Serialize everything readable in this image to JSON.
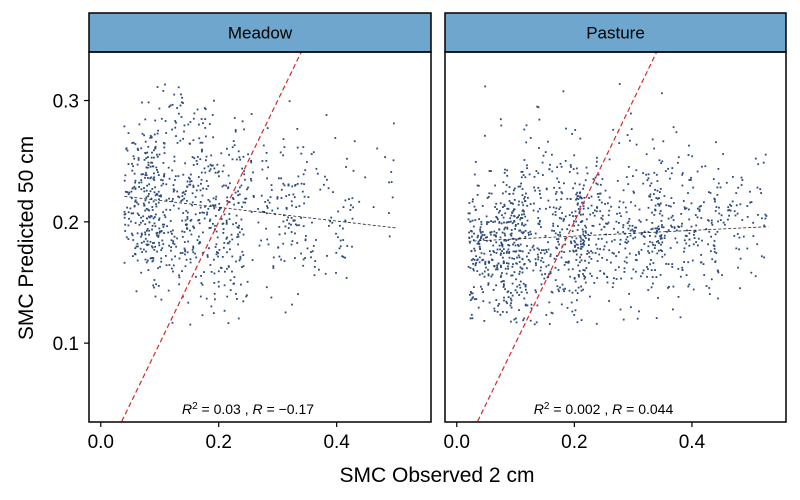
{
  "chart_data": {
    "type": "scatter",
    "xlabel": "SMC Observed 2 cm",
    "ylabel": "SMC Predicted 50 cm",
    "xlim": [
      -0.02,
      0.56
    ],
    "ylim": [
      0.035,
      0.34
    ],
    "x_ticks": [
      0.0,
      0.2,
      0.4
    ],
    "x_tick_labels": [
      "0.0",
      "0.2",
      "0.4"
    ],
    "y_ticks": [
      0.1,
      0.2,
      0.3
    ],
    "y_tick_labels": [
      "0.1",
      "0.2",
      "0.3"
    ],
    "grid": false,
    "colors": {
      "points": "#2c4a7a",
      "one_to_one_line": "#d62728",
      "fit_line": "#222222",
      "strip": "#6ea6cd"
    },
    "panels": [
      {
        "title": "Meadow",
        "stats_label": {
          "r2": "0.03",
          "r": "−0.17"
        },
        "fit_line": {
          "x": [
            0.04,
            0.5
          ],
          "y": [
            0.221,
            0.195
          ]
        },
        "one_to_one_line": {
          "x": [
            0.0,
            0.6
          ],
          "y": [
            0.0,
            0.6
          ]
        },
        "point_clusters": [
          {
            "x_range": [
              0.04,
              0.1
            ],
            "y_mean": 0.215,
            "y_sd": 0.03,
            "n": 180
          },
          {
            "x_range": [
              0.07,
              0.2
            ],
            "y_mean": 0.23,
            "y_sd": 0.045,
            "n": 260
          },
          {
            "x_range": [
              0.1,
              0.25
            ],
            "y_mean": 0.19,
            "y_sd": 0.035,
            "n": 200
          },
          {
            "x_range": [
              0.2,
              0.35
            ],
            "y_mean": 0.21,
            "y_sd": 0.035,
            "n": 170
          },
          {
            "x_range": [
              0.3,
              0.43
            ],
            "y_mean": 0.205,
            "y_sd": 0.03,
            "n": 80
          },
          {
            "x_range": [
              0.42,
              0.5
            ],
            "y_mean": 0.235,
            "y_sd": 0.025,
            "n": 15
          }
        ]
      },
      {
        "title": "Pasture",
        "stats_label": {
          "r2": "0.002",
          "r": "0.044"
        },
        "fit_line": {
          "x": [
            0.02,
            0.53
          ],
          "y": [
            0.184,
            0.196
          ]
        },
        "one_to_one_line": {
          "x": [
            0.0,
            0.6
          ],
          "y": [
            0.0,
            0.6
          ]
        },
        "point_clusters": [
          {
            "x_range": [
              0.02,
              0.12
            ],
            "y_mean": 0.175,
            "y_sd": 0.03,
            "n": 330
          },
          {
            "x_range": [
              0.08,
              0.22
            ],
            "y_mean": 0.185,
            "y_sd": 0.035,
            "n": 330
          },
          {
            "x_range": [
              0.2,
              0.35
            ],
            "y_mean": 0.19,
            "y_sd": 0.03,
            "n": 300
          },
          {
            "x_range": [
              0.33,
              0.45
            ],
            "y_mean": 0.19,
            "y_sd": 0.03,
            "n": 190
          },
          {
            "x_range": [
              0.43,
              0.53
            ],
            "y_mean": 0.205,
            "y_sd": 0.025,
            "n": 70
          },
          {
            "x_range": [
              0.02,
              0.4
            ],
            "y_mean": 0.25,
            "y_sd": 0.03,
            "n": 60
          }
        ]
      }
    ]
  }
}
